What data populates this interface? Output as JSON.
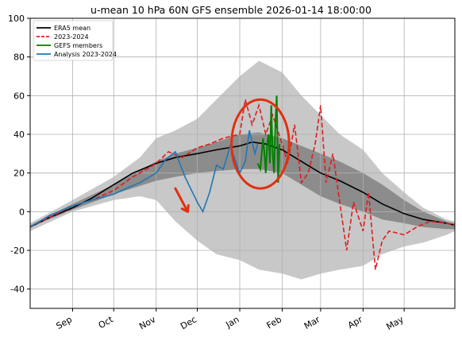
{
  "chart_data": {
    "type": "line",
    "title": "u-mean 10 hPa 60N GFS ensemble 2026-01-14 18:00:00",
    "xlabel": "",
    "ylabel": "",
    "ylim": [
      -50,
      100
    ],
    "yticks": [
      -40,
      -20,
      0,
      20,
      40,
      60,
      80,
      100
    ],
    "xlim": [
      "2025-08-01",
      "2026-06-07"
    ],
    "xticks": [
      {
        "date": "2025-09-01",
        "label": "Sep"
      },
      {
        "date": "2025-10-01",
        "label": "Oct"
      },
      {
        "date": "2025-11-01",
        "label": "Nov"
      },
      {
        "date": "2025-12-01",
        "label": "Dec"
      },
      {
        "date": "2026-01-01",
        "label": "Jan"
      },
      {
        "date": "2026-02-01",
        "label": "Feb"
      },
      {
        "date": "2026-03-01",
        "label": "Mar"
      },
      {
        "date": "2026-04-01",
        "label": "Apr"
      },
      {
        "date": "2026-05-01",
        "label": "May"
      }
    ],
    "grid": true,
    "legend_position": "top-left",
    "legend": [
      {
        "label": "ERA5 mean",
        "color": "#000000",
        "style": "solid"
      },
      {
        "label": "2023-2024",
        "color": "#e41a1c",
        "style": "dashed"
      },
      {
        "label": "GEFS members",
        "color": "#008000",
        "style": "solid"
      },
      {
        "label": "Analysis 2023-2024",
        "color": "#1f77b4",
        "style": "solid"
      }
    ],
    "bands": [
      {
        "name": "min-max",
        "color": "#c8c8c8",
        "x": [
          "2025-08-01",
          "2025-09-01",
          "2025-10-01",
          "2025-10-20",
          "2025-11-01",
          "2025-11-15",
          "2025-12-01",
          "2025-12-15",
          "2026-01-01",
          "2026-01-15",
          "2026-02-01",
          "2026-02-15",
          "2026-03-01",
          "2026-03-15",
          "2026-04-01",
          "2026-04-15",
          "2026-05-01",
          "2026-05-15",
          "2026-06-01",
          "2026-06-07"
        ],
        "upper": [
          -6,
          6,
          18,
          28,
          38,
          42,
          48,
          58,
          70,
          78,
          72,
          60,
          50,
          40,
          32,
          20,
          10,
          2,
          -4,
          -5
        ],
        "lower": [
          -10,
          0,
          6,
          8,
          6,
          -5,
          -15,
          -22,
          -25,
          -30,
          -32,
          -35,
          -32,
          -30,
          -28,
          -22,
          -18,
          -16,
          -12,
          -10
        ]
      },
      {
        "name": "percentile",
        "color": "#8c8c8c",
        "x": [
          "2025-08-01",
          "2025-09-01",
          "2025-10-01",
          "2025-11-01",
          "2025-11-15",
          "2025-12-01",
          "2025-12-15",
          "2026-01-01",
          "2026-01-15",
          "2026-02-01",
          "2026-02-15",
          "2026-03-01",
          "2026-03-15",
          "2026-04-01",
          "2026-04-15",
          "2026-05-01",
          "2026-05-15",
          "2026-06-01",
          "2026-06-07"
        ],
        "upper": [
          -7,
          4,
          14,
          26,
          30,
          33,
          36,
          40,
          41,
          38,
          34,
          30,
          26,
          20,
          14,
          6,
          0,
          -5,
          -6
        ],
        "lower": [
          -8,
          1,
          9,
          16,
          18,
          20,
          21,
          22,
          22,
          20,
          14,
          8,
          4,
          0,
          -4,
          -6,
          -8,
          -9,
          -9
        ]
      }
    ],
    "series": [
      {
        "name": "ERA5 mean",
        "color": "#000000",
        "dash": "",
        "x": [
          "2025-08-01",
          "2025-08-15",
          "2025-09-01",
          "2025-09-15",
          "2025-10-01",
          "2025-10-15",
          "2025-11-01",
          "2025-11-15",
          "2025-12-01",
          "2025-12-15",
          "2026-01-01",
          "2026-01-10",
          "2026-01-20",
          "2026-02-01",
          "2026-02-15",
          "2026-03-01",
          "2026-03-15",
          "2026-04-01",
          "2026-04-15",
          "2026-05-01",
          "2026-05-15",
          "2026-06-01",
          "2026-06-07"
        ],
        "y": [
          -8,
          -3,
          2,
          7,
          14,
          20,
          25,
          28,
          30,
          32,
          34,
          36,
          35,
          32,
          26,
          20,
          16,
          10,
          4,
          -1,
          -4,
          -6,
          -7
        ]
      },
      {
        "name": "2023-2024",
        "color": "#e41a1c",
        "dash": "6,3",
        "x": [
          "2025-08-01",
          "2025-08-15",
          "2025-09-01",
          "2025-09-15",
          "2025-10-01",
          "2025-10-15",
          "2025-10-25",
          "2025-11-01",
          "2025-11-10",
          "2025-11-20",
          "2025-12-01",
          "2025-12-10",
          "2025-12-20",
          "2026-01-01",
          "2026-01-05",
          "2026-01-10",
          "2026-01-15",
          "2026-01-20",
          "2026-01-25",
          "2026-02-01",
          "2026-02-05",
          "2026-02-10",
          "2026-02-15",
          "2026-02-20",
          "2026-02-25",
          "2026-03-01",
          "2026-03-05",
          "2026-03-10",
          "2026-03-15",
          "2026-03-20",
          "2026-03-25",
          "2026-04-01",
          "2026-04-05",
          "2026-04-10",
          "2026-04-15",
          "2026-04-20",
          "2026-05-01",
          "2026-05-10",
          "2026-05-20",
          "2026-06-01",
          "2026-06-07"
        ],
        "y": [
          -8,
          -3,
          3,
          6,
          11,
          18,
          22,
          25,
          31,
          28,
          33,
          35,
          38,
          40,
          58,
          45,
          55,
          40,
          50,
          35,
          25,
          45,
          15,
          20,
          35,
          55,
          15,
          30,
          5,
          -20,
          5,
          -10,
          10,
          -30,
          -15,
          -10,
          -12,
          -8,
          -5,
          -6,
          -7
        ]
      },
      {
        "name": "Analysis 2023-2024",
        "color": "#1f77b4",
        "dash": "",
        "x": [
          "2025-08-01",
          "2025-08-15",
          "2025-09-01",
          "2025-09-15",
          "2025-10-01",
          "2025-10-10",
          "2025-10-20",
          "2025-11-01",
          "2025-11-08",
          "2025-11-15",
          "2025-11-22",
          "2025-12-01",
          "2025-12-05",
          "2025-12-10",
          "2025-12-15",
          "2025-12-20",
          "2025-12-25",
          "2026-01-01",
          "2026-01-05",
          "2026-01-08",
          "2026-01-12",
          "2026-01-14"
        ],
        "y": [
          -8,
          -2,
          3,
          6,
          9,
          12,
          15,
          20,
          27,
          31,
          18,
          5,
          0,
          10,
          24,
          22,
          34,
          20,
          26,
          42,
          30,
          35
        ]
      },
      {
        "name": "GEFS members",
        "color": "#008000",
        "dash": "",
        "x": [
          "2026-01-14",
          "2026-01-16",
          "2026-01-18",
          "2026-01-19",
          "2026-01-20",
          "2026-01-21",
          "2026-01-22",
          "2026-01-23",
          "2026-01-24",
          "2026-01-25",
          "2026-01-26",
          "2026-01-27",
          "2026-01-28",
          "2026-01-29",
          "2026-01-30"
        ],
        "y": [
          25,
          22,
          38,
          30,
          20,
          35,
          40,
          25,
          55,
          30,
          20,
          45,
          60,
          15,
          35
        ]
      }
    ],
    "annotations": [
      {
        "type": "circle",
        "color": "#e03010",
        "cx": "2026-01-16",
        "cy": 35,
        "rx_days": 21,
        "ry": 23
      },
      {
        "type": "arrow",
        "color": "#e03010",
        "x0": "2025-11-15",
        "y0": 12,
        "x1": "2025-11-24",
        "y1": 0
      }
    ]
  }
}
